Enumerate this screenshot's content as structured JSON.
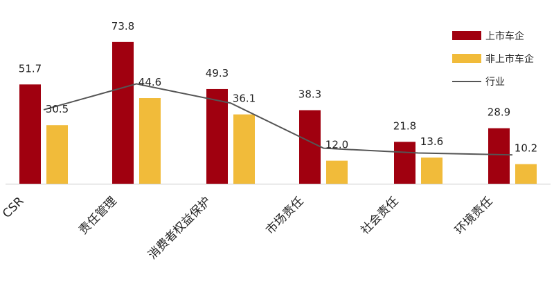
{
  "chart_data": {
    "type": "bar",
    "categories": [
      "CSR",
      "责任管理",
      "消费者权益保护",
      "市场责任",
      "社会责任",
      "环境责任"
    ],
    "series": [
      {
        "name": "上市车企",
        "values": [
          51.7,
          73.8,
          49.3,
          38.3,
          21.8,
          28.9
        ],
        "color": "#a0000f"
      },
      {
        "name": "非上市车企",
        "values": [
          30.5,
          44.6,
          36.1,
          12.0,
          13.6,
          10.2
        ],
        "color": "#f1bb3a"
      }
    ],
    "line_series": {
      "name": "行业",
      "values": [
        38.5,
        52.0,
        42.0,
        18.5,
        16.0,
        15.0
      ],
      "color": "#555555"
    },
    "value_labels": {
      "上市车企": [
        "51.7",
        "73.8",
        "49.3",
        "38.3",
        "21.8",
        "28.9"
      ],
      "非上市车企": [
        "30.5",
        "44.6",
        "36.1",
        "12.0",
        "13.6",
        "10.2"
      ]
    },
    "ylim": [
      0,
      80
    ],
    "grid": false,
    "legend_position": "top-right",
    "title": "",
    "xlabel": "",
    "ylabel": ""
  }
}
